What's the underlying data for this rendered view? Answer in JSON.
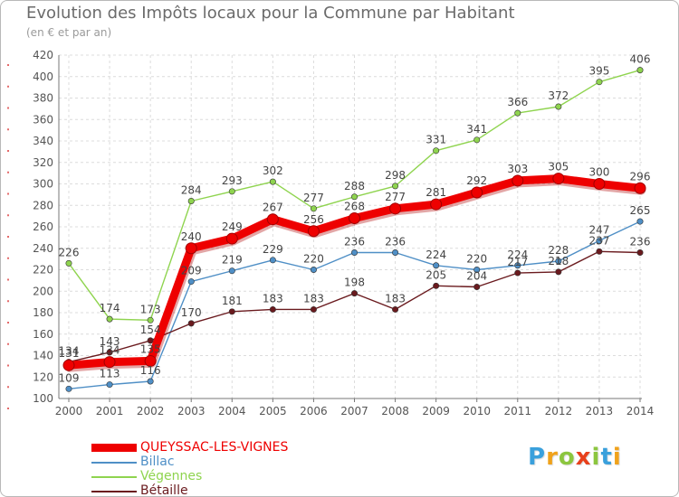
{
  "title": "Evolution des Impôts locaux pour la Commune par Habitant",
  "subtitle": "(en € et par an)",
  "brand": {
    "letters": [
      {
        "ch": "P",
        "color": "#3aa0dc"
      },
      {
        "ch": "r",
        "color": "#f0a21b"
      },
      {
        "ch": "o",
        "color": "#8cc63f"
      },
      {
        "ch": "x",
        "color": "#e8401c"
      },
      {
        "ch": "i",
        "color": "#8cc63f"
      },
      {
        "ch": "t",
        "color": "#3aa0dc"
      },
      {
        "ch": "i",
        "color": "#f0a21b"
      }
    ]
  },
  "chart_data": {
    "type": "line",
    "x": [
      "2000",
      "2001",
      "2002",
      "2003",
      "2004",
      "2005",
      "2006",
      "2007",
      "2008",
      "2009",
      "2010",
      "2011",
      "2012",
      "2013",
      "2014"
    ],
    "ylim": [
      100,
      420
    ],
    "yticks": [
      100,
      120,
      140,
      160,
      180,
      200,
      220,
      240,
      260,
      280,
      300,
      320,
      340,
      360,
      380,
      400,
      420
    ],
    "grid": true,
    "legend_position": "bottom-left",
    "series": [
      {
        "name": "QUEYSSAC-LES-VIGNES",
        "color": "#ee0000",
        "values": [
          131,
          134,
          135,
          240,
          249,
          267,
          256,
          268,
          277,
          281,
          292,
          303,
          305,
          300,
          296
        ],
        "labels": [
          "131",
          "134",
          "135",
          "240",
          "249",
          "267",
          "256",
          "268",
          "277",
          "281",
          "292",
          "303",
          "305",
          "300",
          "296"
        ]
      },
      {
        "name": "Billac",
        "color": "#4f8fc6",
        "values": [
          109,
          113,
          116,
          209,
          219,
          229,
          220,
          236,
          236,
          224,
          220,
          224,
          228,
          247,
          265
        ],
        "labels": [
          "109",
          "113",
          "116",
          "209",
          "219",
          "229",
          "220",
          "236",
          "236",
          "224",
          "220",
          "224",
          "228",
          "247",
          "265"
        ]
      },
      {
        "name": "Végennes",
        "color": "#8fd44f",
        "values": [
          226,
          174,
          173,
          284,
          293,
          302,
          277,
          288,
          298,
          331,
          341,
          366,
          372,
          395,
          406
        ],
        "labels": [
          "226",
          "174",
          "173",
          "284",
          "293",
          "302",
          "277",
          "288",
          "298",
          "331",
          "341",
          "366",
          "372",
          "395",
          "406"
        ]
      },
      {
        "name": "Bétaille",
        "color": "#6a1a1e",
        "values": [
          134,
          143,
          154,
          170,
          181,
          183,
          183,
          198,
          183,
          205,
          204,
          217,
          218,
          237,
          236
        ],
        "labels": [
          "134",
          "143",
          "154",
          "170",
          "181",
          "183",
          "183",
          "198",
          "183",
          "205",
          "204",
          "217",
          "218",
          "237",
          "236"
        ]
      }
    ]
  }
}
